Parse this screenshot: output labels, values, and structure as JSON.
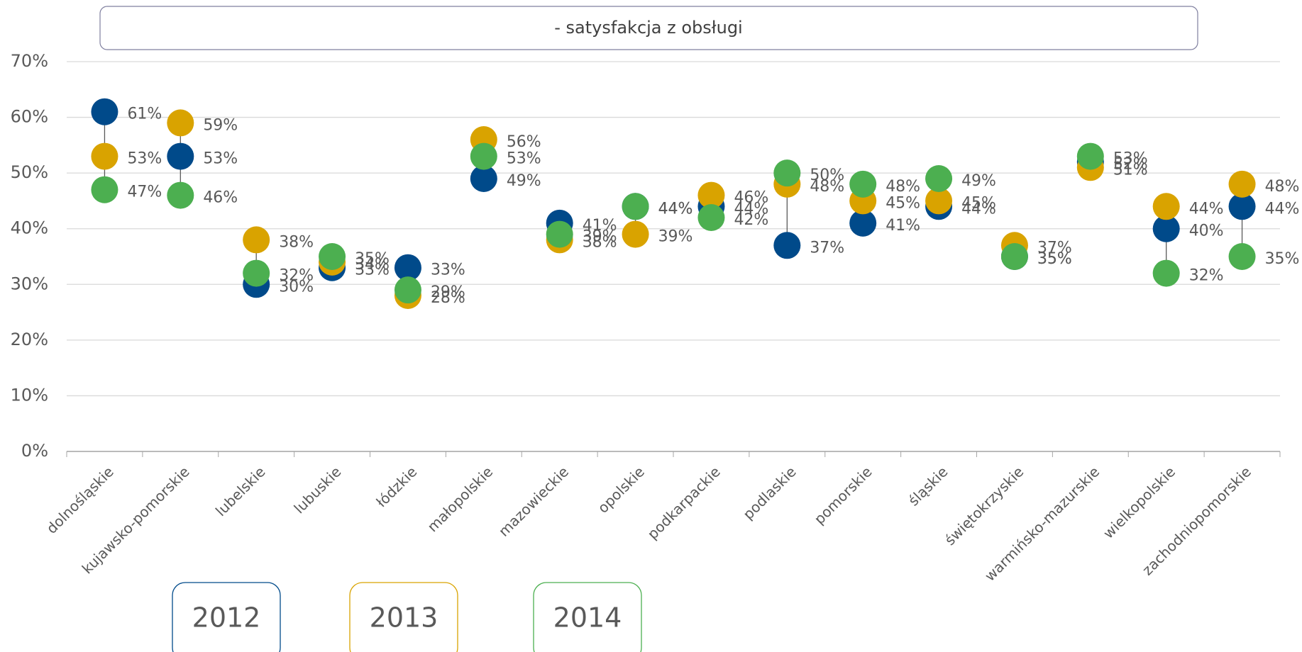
{
  "chart_data": {
    "type": "dot",
    "title": "- satysfakcja z obsługi",
    "categories": [
      "dolnośląskie",
      "kujawsko-pomorskie",
      "lubelskie",
      "lubuskie",
      "łódzkie",
      "małopolskie",
      "mazowieckie",
      "opolskie",
      "podkarpackie",
      "podlaskie",
      "pomorskie",
      "śląskie",
      "świętokrzyskie",
      "warmińsko-mazurskie",
      "wielkopolskie",
      "zachodniopomorskie"
    ],
    "series": [
      {
        "name": "2012",
        "color": "#004a8a",
        "values": [
          61,
          53,
          30,
          33,
          33,
          49,
          41,
          44,
          44,
          37,
          41,
          44,
          35,
          52,
          40,
          44
        ],
        "value_labels": [
          "61%",
          "53%",
          "30%",
          "33%",
          "33%",
          "49%",
          "41%",
          "44%",
          "44%",
          "37%",
          "41%",
          "44%",
          "35%",
          "52%",
          "40%",
          "44%"
        ]
      },
      {
        "name": "2013",
        "color": "#d9a300",
        "values": [
          53,
          59,
          38,
          34,
          28,
          56,
          38,
          39,
          46,
          48,
          45,
          45,
          37,
          51,
          44,
          48
        ],
        "value_labels": [
          "53%",
          "59%",
          "38%",
          "34%",
          "28%",
          "56%",
          "38%",
          "39%",
          "46%",
          "48%",
          "45%",
          "45%",
          "37%",
          "51%",
          "44%",
          "48%"
        ]
      },
      {
        "name": "2014",
        "color": "#4caf50",
        "values": [
          47,
          46,
          32,
          35,
          29,
          53,
          39,
          44,
          42,
          50,
          48,
          49,
          35,
          53,
          32,
          35
        ],
        "value_labels": [
          "47%",
          "46%",
          "32%",
          "35%",
          "29%",
          "53%",
          "39%",
          "44%",
          "42%",
          "50%",
          "48%",
          "49%",
          "35%",
          "53%",
          "32%",
          "35%"
        ]
      }
    ],
    "ylim": [
      0,
      70
    ],
    "yticks": [
      {
        "value": 0,
        "label": "0%"
      },
      {
        "value": 10,
        "label": "10%"
      },
      {
        "value": 20,
        "label": "20%"
      },
      {
        "value": 30,
        "label": "30%"
      },
      {
        "value": 40,
        "label": "40%"
      },
      {
        "value": 50,
        "label": "50%"
      },
      {
        "value": 60,
        "label": "60%"
      },
      {
        "value": 70,
        "label": "70%"
      }
    ],
    "grid": true
  }
}
